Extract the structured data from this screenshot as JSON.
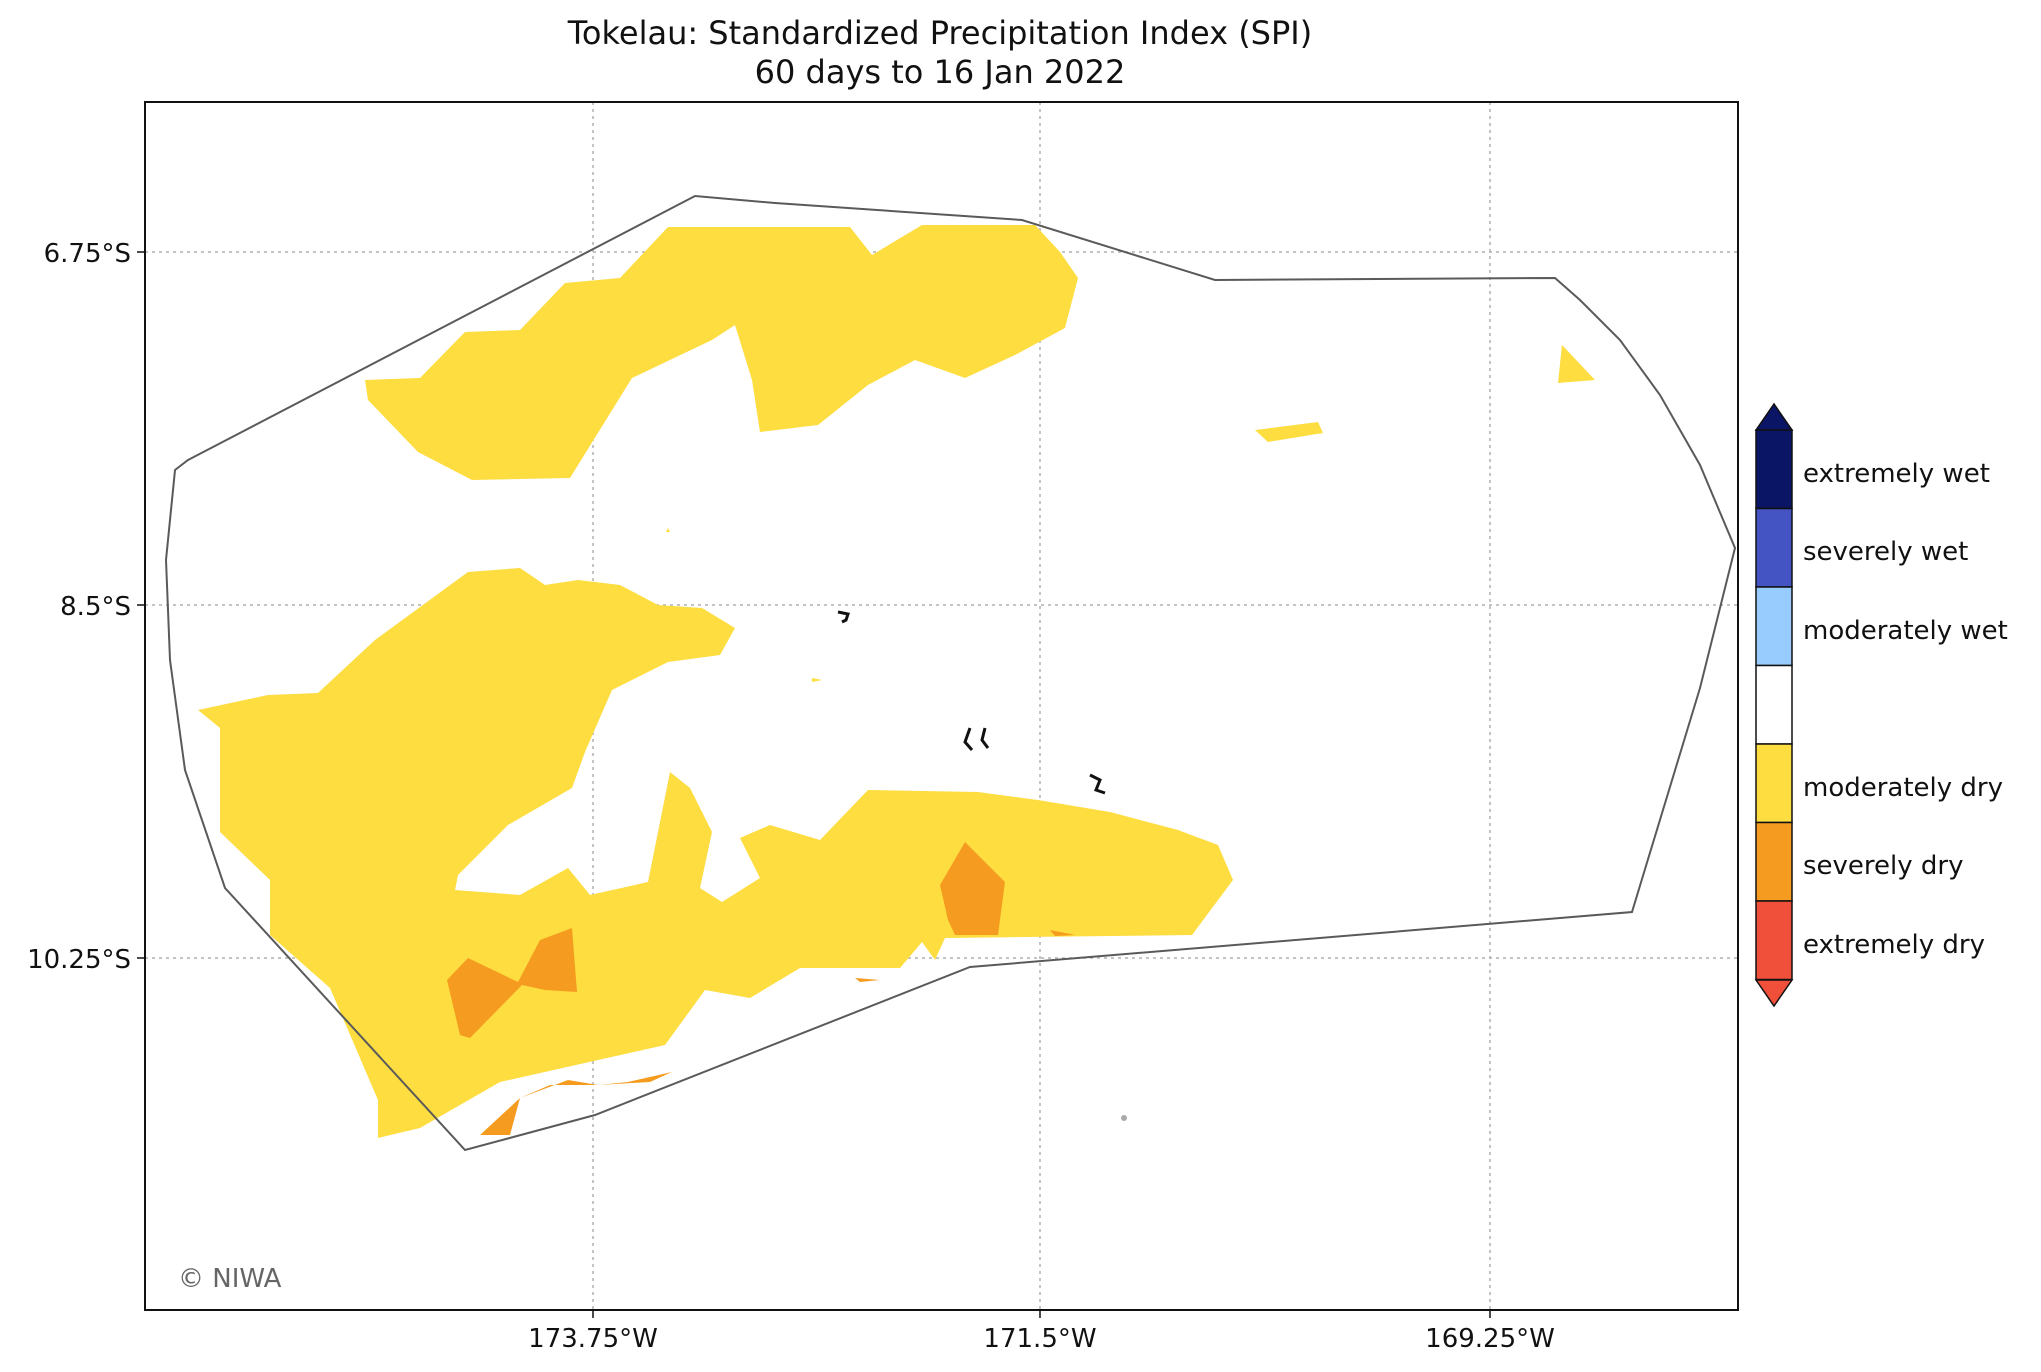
{
  "title": "Tokelau: Standardized Precipitation Index (SPI)",
  "subtitle": "60 days to 16 Jan 2022",
  "x_ticks": [
    "173.75°W",
    "171.5°W",
    "169.25°W"
  ],
  "y_ticks": [
    "6.75°S",
    "8.5°S",
    "10.25°S"
  ],
  "credit": "© NIWA",
  "legend": [
    {
      "label": "extremely wet",
      "color": "#0a1565"
    },
    {
      "label": "severely wet",
      "color": "#4454c3"
    },
    {
      "label": "moderately wet",
      "color": "#99ccfe"
    },
    {
      "label": "",
      "color": "#ffffff"
    },
    {
      "label": "moderately dry",
      "color": "#fddd3f"
    },
    {
      "label": "severely dry",
      "color": "#f59c20"
    },
    {
      "label": "extremely dry",
      "color": "#f0503a"
    }
  ],
  "colors": {
    "boundary": "#5a5a5a",
    "grid": "#b0b0b0",
    "island": "#111111"
  }
}
